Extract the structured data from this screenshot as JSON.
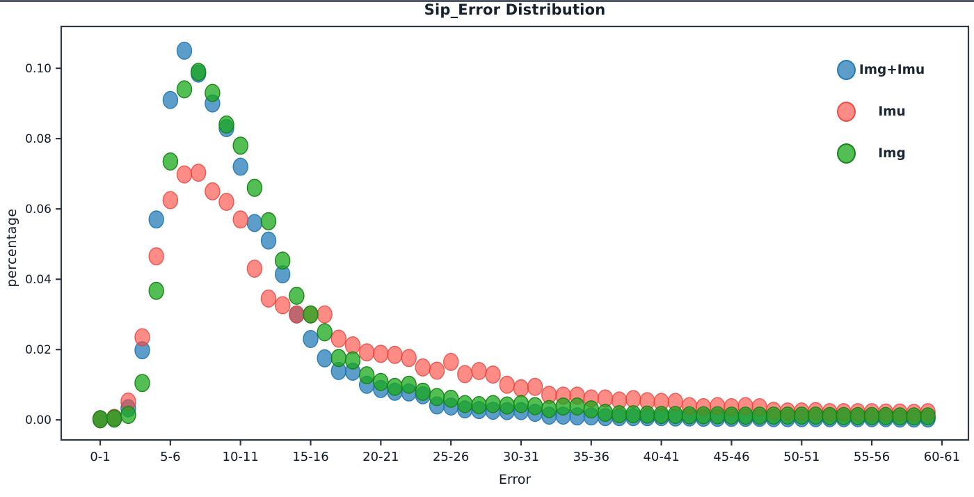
{
  "chart_data": {
    "type": "scatter",
    "title": "Sip_Error Distribution",
    "xlabel": "Error",
    "ylabel": "percentage",
    "grid": false,
    "legend_position": "upper right",
    "x_tick_labels": [
      "0-1",
      "5-6",
      "10-11",
      "15-16",
      "20-21",
      "25-26",
      "30-31",
      "35-36",
      "40-41",
      "45-46",
      "50-51",
      "55-56",
      "60-61"
    ],
    "x_tick_bins": [
      0,
      5,
      10,
      15,
      20,
      25,
      30,
      35,
      40,
      45,
      50,
      55,
      60
    ],
    "y_tick_labels": [
      "0.00",
      "0.02",
      "0.04",
      "0.06",
      "0.08",
      "0.10"
    ],
    "y_tick_values": [
      0.0,
      0.02,
      0.04,
      0.06,
      0.08,
      0.1
    ],
    "xlim_bins": [
      -2.78,
      61.89
    ],
    "ylim": [
      -0.0057,
      0.1119
    ],
    "axis_color": "#2e3744",
    "tick_text_color": "#101b29",
    "series": [
      {
        "name": "Img+Imu",
        "color": "#1f77b4",
        "edge_color": "#1f77b4",
        "fill_opacity": 0.72,
        "values": [
          0.0002,
          0.0004,
          0.0033,
          0.0198,
          0.057,
          0.091,
          0.105,
          0.0985,
          0.09,
          0.083,
          0.072,
          0.056,
          0.051,
          0.0414,
          0.03,
          0.023,
          0.0175,
          0.0139,
          0.0137,
          0.01,
          0.0088,
          0.008,
          0.0078,
          0.007,
          0.0041,
          0.0038,
          0.003,
          0.0028,
          0.0026,
          0.0025,
          0.0025,
          0.002,
          0.0012,
          0.0012,
          0.001,
          0.001,
          0.0008,
          0.0008,
          0.0008,
          0.0008,
          0.0008,
          0.0007,
          0.0007,
          0.0006,
          0.0006,
          0.0006,
          0.0006,
          0.0006,
          0.0005,
          0.0005,
          0.0005,
          0.0005,
          0.0005,
          0.0005,
          0.0005,
          0.0005,
          0.0005,
          0.0004,
          0.0004,
          0.0004
        ]
      },
      {
        "name": "Imu",
        "color": "#fc463c",
        "edge_color": "#e84038",
        "fill_opacity": 0.62,
        "values": [
          0.0002,
          0.0006,
          0.0052,
          0.0235,
          0.0465,
          0.0625,
          0.0698,
          0.0703,
          0.065,
          0.062,
          0.057,
          0.043,
          0.0345,
          0.0326,
          0.03,
          0.03,
          0.03,
          0.0231,
          0.0212,
          0.0192,
          0.0188,
          0.0185,
          0.0176,
          0.0149,
          0.014,
          0.0165,
          0.013,
          0.0139,
          0.0129,
          0.01,
          0.009,
          0.0094,
          0.0071,
          0.0069,
          0.0069,
          0.0061,
          0.0061,
          0.0055,
          0.0059,
          0.0053,
          0.0051,
          0.0051,
          0.0039,
          0.0036,
          0.0039,
          0.0036,
          0.0039,
          0.0036,
          0.0026,
          0.0024,
          0.0024,
          0.0025,
          0.0022,
          0.0022,
          0.0022,
          0.0022,
          0.0021,
          0.0021,
          0.002,
          0.0022
        ]
      },
      {
        "name": "Img",
        "color": "#1aa81a",
        "edge_color": "#148214",
        "fill_opacity": 0.75,
        "values": [
          0.0002,
          0.0004,
          0.0014,
          0.0105,
          0.0367,
          0.0735,
          0.094,
          0.099,
          0.093,
          0.084,
          0.078,
          0.066,
          0.0565,
          0.0453,
          0.0353,
          0.03,
          0.0249,
          0.0176,
          0.0169,
          0.0127,
          0.0108,
          0.0094,
          0.01,
          0.008,
          0.0065,
          0.006,
          0.0045,
          0.0042,
          0.0045,
          0.0041,
          0.0045,
          0.0039,
          0.0031,
          0.0038,
          0.0038,
          0.003,
          0.002,
          0.0016,
          0.0016,
          0.0015,
          0.0014,
          0.0014,
          0.0013,
          0.0013,
          0.0013,
          0.0012,
          0.0012,
          0.0012,
          0.0012,
          0.0012,
          0.0012,
          0.0012,
          0.0011,
          0.0011,
          0.0011,
          0.0011,
          0.0011,
          0.001,
          0.001,
          0.001
        ]
      }
    ]
  }
}
